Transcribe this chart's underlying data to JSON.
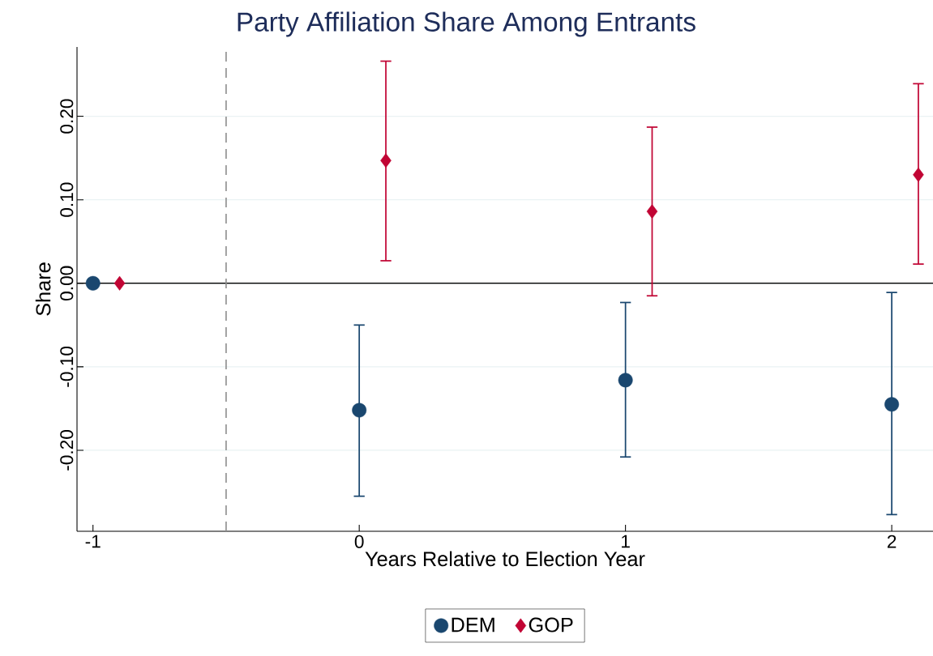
{
  "chart_data": {
    "type": "scatter",
    "title": "Party Affiliation Share Among Entrants",
    "xlabel": "Years Relative to Election Year",
    "ylabel": "Share",
    "xlim": [
      -1.06,
      2.155
    ],
    "ylim": [
      -0.297,
      0.283
    ],
    "xticks": [
      -1,
      0,
      1,
      2
    ],
    "yticks": [
      {
        "value": -0.2,
        "label": "-0.20"
      },
      {
        "value": -0.1,
        "label": "-0.10"
      },
      {
        "value": 0,
        "label": "0.00"
      },
      {
        "value": 0.1,
        "label": "0.10"
      },
      {
        "value": 0.2,
        "label": "0.20"
      }
    ],
    "grid": "y",
    "legend": "bottom",
    "series": [
      {
        "name": "DEM",
        "color": "#1a476f",
        "marker": "circle",
        "x": [
          -1,
          0,
          1,
          2
        ],
        "values": [
          0,
          -0.152,
          -0.116,
          -0.145
        ],
        "errors": [
          null,
          [
            -0.255,
            -0.05
          ],
          [
            -0.208,
            -0.023
          ],
          [
            -0.277,
            -0.011
          ]
        ]
      },
      {
        "name": "GOP",
        "color": "#c10534",
        "marker": "diamond",
        "x": [
          -0.9,
          0.1,
          1.1,
          2.1
        ],
        "values": [
          0,
          0.147,
          0.086,
          0.13
        ],
        "errors": [
          null,
          [
            0.027,
            0.266
          ],
          [
            -0.015,
            0.187
          ],
          [
            0.023,
            0.239
          ]
        ]
      }
    ],
    "ref_lines": [
      {
        "axis": "y",
        "value": 0,
        "color": "#000000",
        "line_style": "solid"
      },
      {
        "axis": "x",
        "value": -0.5,
        "color": "#8c8c8c",
        "line_style": "dashed"
      }
    ]
  }
}
